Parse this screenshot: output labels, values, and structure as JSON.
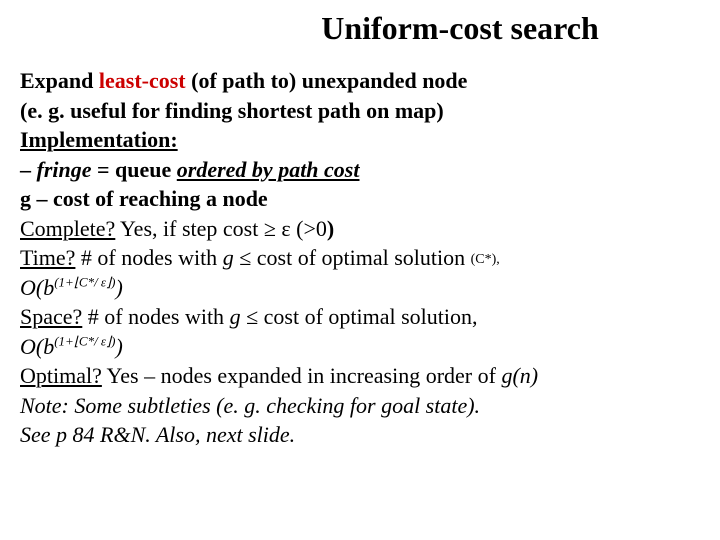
{
  "title": "Uniform-cost search",
  "l1a": "Expand ",
  "l1b": "least-cost ",
  "l1c": "(of path to) ",
  "l1d": "unexpanded node",
  "l2": "(e. g. useful for finding shortest path on map)",
  "l3": "Implementation:",
  "l4a": "– ",
  "l4b": "fringe",
  "l4c": " = queue ",
  "l4d": "ordered by path cost",
  "l5": "g – cost of reaching a node",
  "l6a": "Complete?",
  "l6b": " Yes, if step cost ≥ ε  (>0",
  "l6c": ")",
  "l7a": "Time?",
  "l7b": " # of nodes with ",
  "l7c": "g",
  "l7d": " ≤ cost of optimal solution ",
  "l7e": "(C*),",
  "l8a": "O(b",
  "l8b": "(1+⌊C*/ ε⌋)",
  "l8c": ")",
  "l9a": "Space?",
  "l9b": " # of nodes with ",
  "l9c": "g",
  "l9d": " ≤ cost of optimal solution,",
  "l10a": "O(b",
  "l10b": "(1+⌊C*/ ε⌋)",
  "l10c": ")",
  "l11a": "Optimal?",
  "l11b": " Yes – nodes expanded in increasing order of ",
  "l11c": "g(n)",
  "l12": "Note: Some subtleties (e. g. checking for goal state).",
  "l13": "See p 84 R&N. Also, next slide."
}
